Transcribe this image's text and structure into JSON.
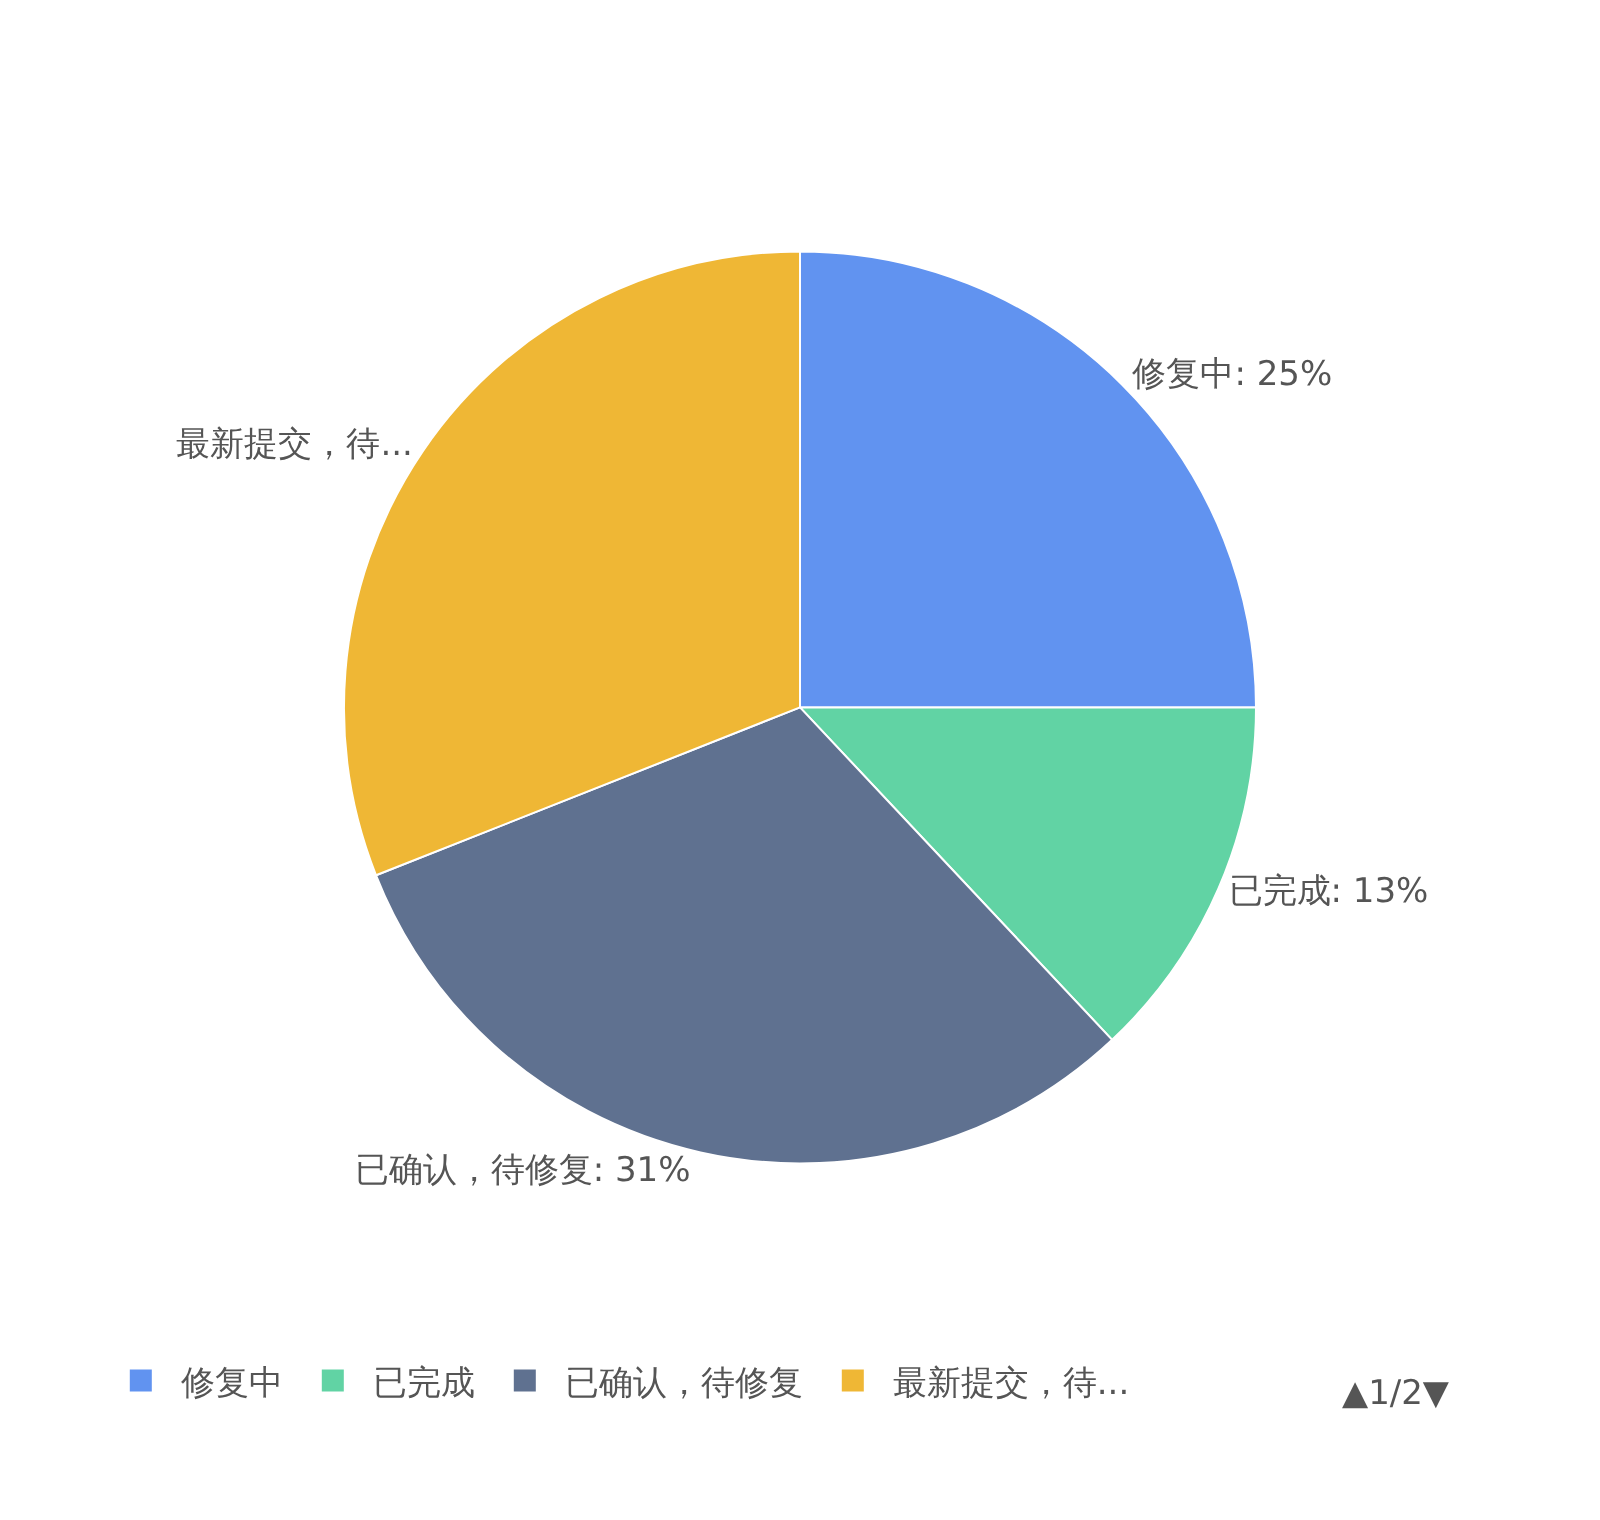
{
  "chart_data": {
    "type": "pie",
    "categories": [
      "修复中",
      "已完成",
      "已确认，待修复",
      "最新提交，待..."
    ],
    "values": [
      25,
      13,
      31,
      31
    ],
    "colors": [
      "#6193f0",
      "#61d3a4",
      "#5f7190",
      "#efb735"
    ],
    "value_labels": [
      "修复中: 25%",
      "已完成: 13%",
      "已确认，待修复: 31%",
      "最新提交，待..."
    ],
    "legend": "bottom",
    "annotations": [
      "▲1/2▼"
    ]
  }
}
